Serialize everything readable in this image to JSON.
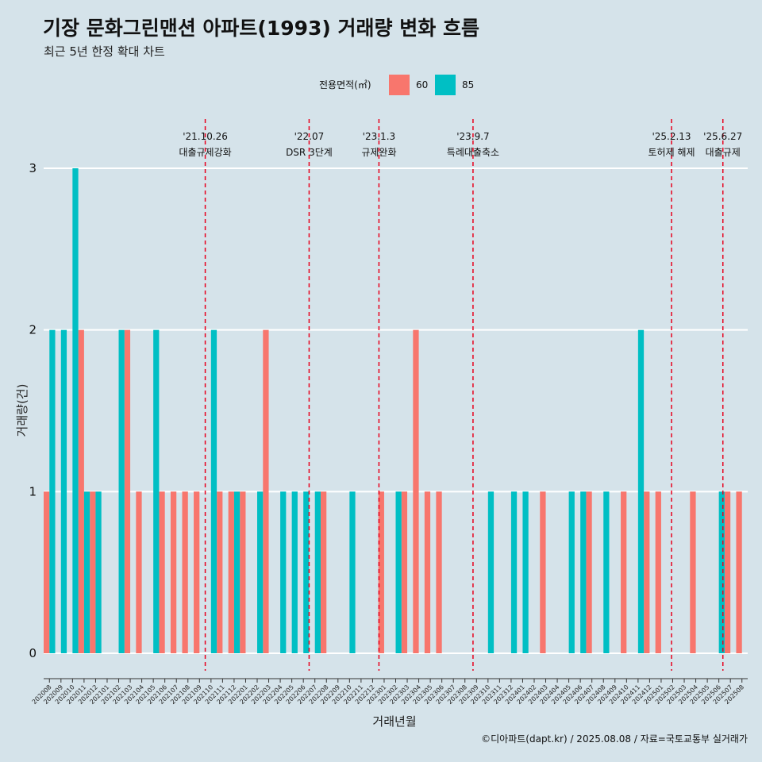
{
  "chart_data": {
    "type": "bar",
    "title": "기장 문화그린맨션 아파트(1993) 거래량 변화 흐름",
    "subtitle": "최근 5년 한정 확대 차트",
    "xlabel": "거래년월",
    "ylabel": "거래량(건)",
    "ylim": [
      0,
      3
    ],
    "yticks": [
      "0",
      "1",
      "2",
      "3"
    ],
    "grid": true,
    "legend": {
      "title": "전용면적(㎡)",
      "position": "top"
    },
    "categories": [
      "202008",
      "202009",
      "202010",
      "202011",
      "202012",
      "202101",
      "202102",
      "202103",
      "202104",
      "202105",
      "202106",
      "202107",
      "202108",
      "202109",
      "202110",
      "202111",
      "202112",
      "202201",
      "202202",
      "202203",
      "202204",
      "202205",
      "202206",
      "202207",
      "202208",
      "202209",
      "202210",
      "202211",
      "202212",
      "202301",
      "202302",
      "202303",
      "202304",
      "202305",
      "202306",
      "202307",
      "202308",
      "202309",
      "202310",
      "202311",
      "202312",
      "202401",
      "202402",
      "202403",
      "202404",
      "202405",
      "202406",
      "202407",
      "202408",
      "202409",
      "202410",
      "202411",
      "202412",
      "202501",
      "202502",
      "202503",
      "202504",
      "202505",
      "202506",
      "202507",
      "202508"
    ],
    "series": [
      {
        "name": "60",
        "color": "#f8766d",
        "values": [
          1,
          0,
          0,
          2,
          1,
          0,
          0,
          2,
          1,
          0,
          1,
          1,
          1,
          1,
          0,
          1,
          1,
          1,
          0,
          2,
          0,
          0,
          0,
          0,
          1,
          0,
          0,
          0,
          0,
          1,
          0,
          1,
          2,
          1,
          1,
          0,
          0,
          0,
          0,
          0,
          0,
          0,
          0,
          1,
          0,
          0,
          0,
          1,
          0,
          0,
          1,
          0,
          1,
          1,
          0,
          0,
          1,
          0,
          0,
          1,
          1
        ]
      },
      {
        "name": "85",
        "color": "#00bfc4",
        "values": [
          2,
          2,
          3,
          1,
          1,
          0,
          2,
          0,
          0,
          2,
          0,
          0,
          0,
          0,
          2,
          0,
          1,
          0,
          1,
          0,
          1,
          1,
          1,
          1,
          0,
          0,
          1,
          0,
          0,
          0,
          1,
          0,
          0,
          0,
          0,
          0,
          0,
          0,
          1,
          0,
          1,
          1,
          0,
          0,
          0,
          1,
          1,
          0,
          1,
          0,
          0,
          2,
          0,
          0,
          0,
          0,
          0,
          0,
          1,
          0,
          0
        ]
      }
    ],
    "events": [
      {
        "date": "'21.10.26",
        "label": "대출규제강화",
        "x": "202110",
        "offset": 0.0
      },
      {
        "date": "'22.07",
        "label": "DSR 3단계",
        "x": "202207",
        "offset": 0.0
      },
      {
        "date": "'23.1.3",
        "label": "규제완화",
        "x": "202301",
        "offset": 0.05
      },
      {
        "date": "'23.9.7",
        "label": "특례대출축소",
        "x": "202309",
        "offset": 0.2
      },
      {
        "date": "'25.2.13",
        "label": "토허제 해제",
        "x": "202502",
        "offset": 0.4
      },
      {
        "date": "'25.6.27",
        "label": "대출규제",
        "x": "202506",
        "offset": 0.85
      }
    ]
  },
  "caption": "©디아파트(dapt.kr) / 2025.08.08 / 자료=국토교통부 실거래가"
}
